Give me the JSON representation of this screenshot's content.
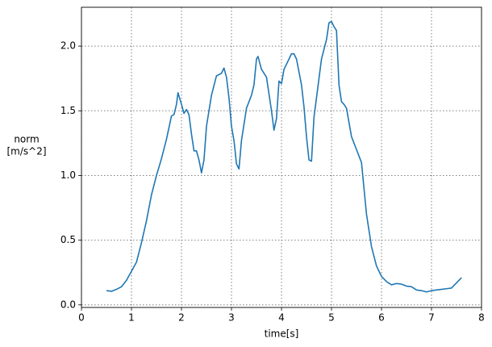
{
  "chart_data": {
    "type": "line",
    "xlabel": "time[s]",
    "ylabel": [
      "norm",
      "[m/s^2]"
    ],
    "xlim": [
      0,
      8
    ],
    "ylim": [
      -0.02,
      2.3
    ],
    "xticks": [
      0,
      1,
      2,
      3,
      4,
      5,
      6,
      7,
      8
    ],
    "yticks": [
      {
        "value": 0,
        "label": "0.0"
      },
      0.5,
      {
        "value": 1,
        "label": "1.0"
      },
      1.5,
      {
        "value": 2,
        "label": "2.0"
      }
    ],
    "grid": true,
    "series": [
      {
        "color": "#1f77b4",
        "x": [
          0.5,
          0.6,
          0.7,
          0.8,
          0.9,
          1.0,
          1.1,
          1.2,
          1.3,
          1.4,
          1.5,
          1.6,
          1.7,
          1.8,
          1.85,
          1.9,
          1.93,
          2.0,
          2.05,
          2.1,
          2.15,
          2.2,
          2.25,
          2.3,
          2.35,
          2.4,
          2.45,
          2.5,
          2.6,
          2.7,
          2.8,
          2.85,
          2.9,
          2.95,
          3.0,
          3.05,
          3.1,
          3.15,
          3.2,
          3.3,
          3.4,
          3.45,
          3.5,
          3.53,
          3.6,
          3.7,
          3.8,
          3.85,
          3.9,
          3.95,
          4.0,
          4.05,
          4.1,
          4.2,
          4.25,
          4.3,
          4.4,
          4.45,
          4.5,
          4.55,
          4.6,
          4.65,
          4.7,
          4.8,
          4.9,
          4.95,
          5.0,
          5.05,
          5.1,
          5.15,
          5.2,
          5.25,
          5.3,
          5.4,
          5.5,
          5.55,
          5.6,
          5.65,
          5.7,
          5.8,
          5.9,
          6.0,
          6.1,
          6.2,
          6.3,
          6.4,
          6.5,
          6.6,
          6.7,
          6.8,
          6.9,
          7.0,
          7.1,
          7.2,
          7.3,
          7.4,
          7.45,
          7.5,
          7.55,
          7.6
        ],
        "values": [
          0.11,
          0.105,
          0.12,
          0.14,
          0.19,
          0.26,
          0.33,
          0.48,
          0.65,
          0.85,
          1.0,
          1.13,
          1.28,
          1.46,
          1.47,
          1.55,
          1.64,
          1.55,
          1.48,
          1.51,
          1.47,
          1.32,
          1.19,
          1.19,
          1.12,
          1.02,
          1.12,
          1.38,
          1.62,
          1.77,
          1.79,
          1.83,
          1.76,
          1.6,
          1.38,
          1.27,
          1.09,
          1.05,
          1.27,
          1.52,
          1.62,
          1.7,
          1.9,
          1.92,
          1.82,
          1.76,
          1.5,
          1.35,
          1.44,
          1.73,
          1.71,
          1.82,
          1.86,
          1.94,
          1.94,
          1.9,
          1.7,
          1.53,
          1.3,
          1.12,
          1.11,
          1.45,
          1.6,
          1.9,
          2.05,
          2.18,
          2.19,
          2.15,
          2.12,
          1.7,
          1.57,
          1.55,
          1.52,
          1.3,
          1.2,
          1.15,
          1.1,
          0.9,
          0.7,
          0.45,
          0.3,
          0.22,
          0.18,
          0.155,
          0.165,
          0.16,
          0.145,
          0.14,
          0.115,
          0.11,
          0.1,
          0.11,
          0.115,
          0.12,
          0.125,
          0.13,
          0.15,
          0.17,
          0.19,
          0.21
        ]
      }
    ]
  }
}
